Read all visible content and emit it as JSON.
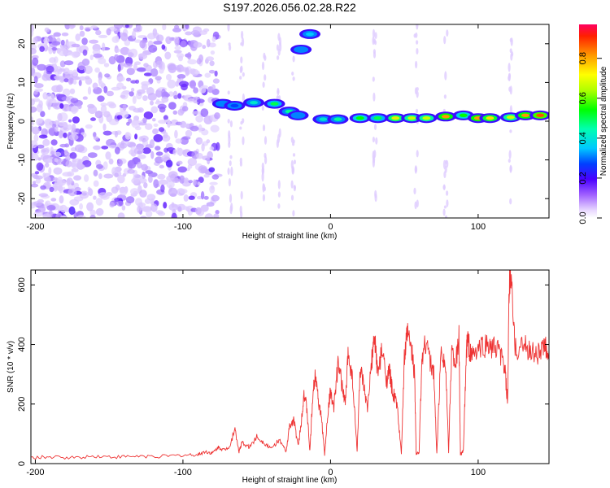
{
  "title": "S197.2026.056.02.28.R22",
  "chart_data": [
    {
      "type": "heatmap",
      "xlabel": "Height of straight line (km)",
      "ylabel": "Frequency (Hz)",
      "xlim": [
        -203,
        148
      ],
      "ylim": [
        -25,
        25
      ],
      "xticks": [
        -200,
        -100,
        0,
        100
      ],
      "yticks": [
        -20,
        -10,
        0,
        10,
        20
      ],
      "colorbar": {
        "label": "Normalized spectral amplitude",
        "range": [
          0,
          0.97
        ],
        "ticks": [
          0.0,
          0.2,
          0.4,
          0.6,
          0.8
        ]
      },
      "features": [
        {
          "x_range": [
            -203,
            -76
          ],
          "description": "broadband noise"
        },
        {
          "x": -73,
          "y": 4.5,
          "value": 0.35
        },
        {
          "x": -65,
          "y": 4.0,
          "value": 0.3
        },
        {
          "x": -52,
          "y": 4.8,
          "value": 0.45
        },
        {
          "x": -38,
          "y": 4.5,
          "value": 0.55
        },
        {
          "x": -28,
          "y": 2.5,
          "value": 0.5
        },
        {
          "x": -22,
          "y": 1.5,
          "value": 0.35
        },
        {
          "x": -20,
          "y": 18.5,
          "value": 0.35
        },
        {
          "x": -14,
          "y": 22.5,
          "value": 0.4
        },
        {
          "x": -5,
          "y": 0.5,
          "value": 0.45
        },
        {
          "x": 5,
          "y": 0.5,
          "value": 0.5
        },
        {
          "x": 20,
          "y": 0.8,
          "value": 0.6
        },
        {
          "x": 32,
          "y": 0.8,
          "value": 0.55
        },
        {
          "x": 44,
          "y": 0.8,
          "value": 0.75
        },
        {
          "x": 55,
          "y": 0.8,
          "value": 0.7
        },
        {
          "x": 65,
          "y": 0.8,
          "value": 0.7
        },
        {
          "x": 78,
          "y": 1.2,
          "value": 0.85
        },
        {
          "x": 90,
          "y": 1.5,
          "value": 0.6
        },
        {
          "x": 100,
          "y": 0.8,
          "value": 0.85
        },
        {
          "x": 108,
          "y": 0.8,
          "value": 0.8
        },
        {
          "x": 122,
          "y": 1.0,
          "value": 0.7
        },
        {
          "x": 132,
          "y": 1.5,
          "value": 0.85
        },
        {
          "x": 142,
          "y": 1.5,
          "value": 0.9
        }
      ]
    },
    {
      "type": "line",
      "xlabel": "Height of straight line (km)",
      "ylabel": "SNR (10 * v/v)",
      "xlim": [
        -203,
        148
      ],
      "ylim": [
        0,
        650
      ],
      "xticks": [
        -200,
        -100,
        0,
        100
      ],
      "yticks": [
        0,
        200,
        400,
        600
      ],
      "color": "#ee3333",
      "series": [
        {
          "x": [
            -203,
            -190,
            -175,
            -160,
            -145,
            -130,
            -115,
            -100,
            -90,
            -85,
            -80,
            -76,
            -72,
            -68,
            -65,
            -62,
            -60,
            -55,
            -50,
            -45,
            -40,
            -35,
            -30,
            -28,
            -25,
            -22,
            -20,
            -18,
            -16,
            -14,
            -12,
            -10,
            -8,
            -6,
            -4,
            -2,
            0,
            2,
            5,
            8,
            10,
            12,
            15,
            18,
            20,
            22,
            25,
            28,
            30,
            32,
            35,
            38,
            40,
            42,
            45,
            48,
            50,
            52,
            55,
            57,
            58,
            60,
            62,
            65,
            68,
            70,
            72,
            75,
            78,
            80,
            82,
            85,
            87,
            88,
            90,
            92,
            93,
            95,
            100,
            105,
            110,
            115,
            118,
            120,
            121,
            122,
            125,
            130,
            135,
            140,
            145,
            148
          ],
          "y": [
            20,
            22,
            20,
            25,
            22,
            25,
            24,
            28,
            30,
            40,
            35,
            55,
            45,
            60,
            120,
            40,
            70,
            55,
            90,
            70,
            50,
            80,
            40,
            120,
            150,
            60,
            130,
            240,
            180,
            40,
            230,
            310,
            200,
            150,
            30,
            160,
            250,
            180,
            330,
            260,
            200,
            380,
            280,
            40,
            320,
            270,
            180,
            350,
            420,
            300,
            380,
            280,
            310,
            240,
            200,
            30,
            350,
            440,
            380,
            300,
            30,
            40,
            360,
            420,
            330,
            300,
            30,
            400,
            320,
            40,
            380,
            340,
            420,
            30,
            40,
            380,
            420,
            360,
            380,
            400,
            390,
            370,
            320,
            200,
            580,
            650,
            380,
            400,
            380,
            370,
            390,
            380
          ]
        }
      ]
    }
  ]
}
